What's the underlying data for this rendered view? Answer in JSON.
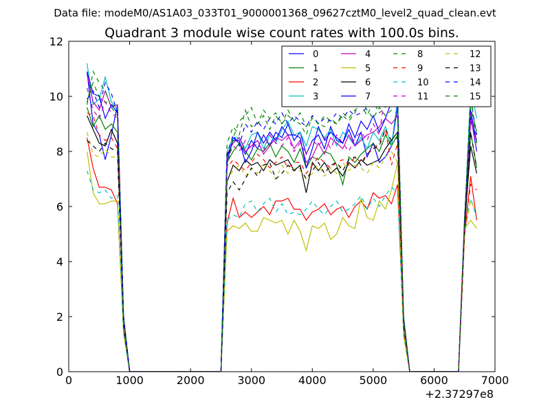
{
  "header": {
    "datafile_label": "Data file: modeM0/AS1A03_033T01_9000001368_09627cztM0_level2_quad_clean.evt"
  },
  "chart_data": {
    "type": "line",
    "title": "Quadrant 3 module wise count rates with 100.0s bins.",
    "xlabel": "",
    "ylabel": "",
    "x_offset_label": "+2.37297e8",
    "xlim": [
      0,
      7000
    ],
    "ylim": [
      0,
      12
    ],
    "x_ticks": [
      0,
      1000,
      2000,
      3000,
      4000,
      5000,
      6000,
      7000
    ],
    "y_ticks": [
      0,
      2,
      4,
      6,
      8,
      10,
      12
    ],
    "grid": false,
    "legend_placement": "top-right",
    "x": [
      300,
      400,
      500,
      600,
      700,
      800,
      900,
      1000,
      1100,
      1200,
      1300,
      1400,
      1500,
      1600,
      1700,
      1800,
      1900,
      2000,
      2100,
      2200,
      2300,
      2400,
      2500,
      2600,
      2700,
      2800,
      2900,
      3000,
      3100,
      3200,
      3300,
      3400,
      3500,
      3600,
      3700,
      3800,
      3900,
      4000,
      4100,
      4200,
      4300,
      4400,
      4500,
      4600,
      4700,
      4800,
      4900,
      5000,
      5100,
      5200,
      5300,
      5400,
      5500,
      5600,
      5700,
      5800,
      5900,
      6000,
      6100,
      6200,
      6300,
      6400,
      6500,
      6600,
      6700
    ],
    "series": [
      {
        "name": "0",
        "color": "#0000ff",
        "dash": "solid",
        "values": [
          10.9,
          9.0,
          8.6,
          7.7,
          8.6,
          9.7,
          2.0,
          0,
          0,
          0,
          0,
          0,
          0,
          0,
          0,
          0,
          0,
          0,
          0,
          0,
          0,
          0,
          0,
          7.6,
          8.5,
          8.3,
          7.9,
          8.4,
          8.1,
          8.6,
          8.2,
          8.7,
          8.5,
          9.0,
          8.4,
          8.7,
          7.9,
          8.4,
          8.6,
          8.1,
          8.9,
          8.4,
          8.3,
          8.8,
          8.2,
          8.7,
          7.8,
          8.3,
          7.6,
          7.8,
          8.2,
          9.6,
          1.8,
          0,
          0,
          0,
          0,
          0,
          0,
          0,
          0,
          0,
          5.2,
          9.3,
          8.0
        ]
      },
      {
        "name": "1",
        "color": "#008000",
        "dash": "solid",
        "values": [
          9.6,
          8.9,
          9.3,
          8.8,
          9.0,
          8.7,
          1.9,
          0,
          0,
          0,
          0,
          0,
          0,
          0,
          0,
          0,
          0,
          0,
          0,
          0,
          0,
          0,
          0,
          7.6,
          8.0,
          8.3,
          8.0,
          7.7,
          8.1,
          8.0,
          8.3,
          7.8,
          8.2,
          8.0,
          7.6,
          8.1,
          7.4,
          7.8,
          7.7,
          8.0,
          7.9,
          7.5,
          6.8,
          7.8,
          7.6,
          7.9,
          8.1,
          8.3,
          8.0,
          8.6,
          8.2,
          8.6,
          1.7,
          0,
          0,
          0,
          0,
          0,
          0,
          0,
          0,
          0,
          5.0,
          8.7,
          7.4
        ]
      },
      {
        "name": "2",
        "color": "#ff0000",
        "dash": "solid",
        "values": [
          8.5,
          7.4,
          6.7,
          6.7,
          6.6,
          6.1,
          1.5,
          0,
          0,
          0,
          0,
          0,
          0,
          0,
          0,
          0,
          0,
          0,
          0,
          0,
          0,
          0,
          0,
          5.4,
          6.3,
          5.6,
          5.8,
          5.6,
          5.8,
          6.0,
          5.7,
          6.2,
          6.2,
          6.3,
          5.9,
          5.9,
          5.5,
          5.8,
          5.9,
          6.1,
          5.7,
          5.9,
          6.0,
          5.6,
          6.0,
          6.2,
          5.9,
          6.5,
          6.3,
          6.4,
          6.1,
          6.8,
          1.4,
          0,
          0,
          0,
          0,
          0,
          0,
          0,
          0,
          0,
          4.9,
          7.1,
          5.5
        ]
      },
      {
        "name": "3",
        "color": "#00bfbf",
        "dash": "solid",
        "values": [
          11.2,
          9.7,
          9.9,
          10.7,
          9.8,
          9.5,
          2.0,
          0,
          0,
          0,
          0,
          0,
          0,
          0,
          0,
          0,
          0,
          0,
          0,
          0,
          0,
          0,
          0,
          8.0,
          8.5,
          8.5,
          8.1,
          8.6,
          8.7,
          8.1,
          8.6,
          8.3,
          8.8,
          9.1,
          8.6,
          8.7,
          8.2,
          8.9,
          8.8,
          8.5,
          8.8,
          8.2,
          8.7,
          8.5,
          8.2,
          8.5,
          8.1,
          8.7,
          8.4,
          8.9,
          8.2,
          9.9,
          1.9,
          0,
          0,
          0,
          0,
          0,
          0,
          0,
          0,
          0,
          5.4,
          10.3,
          9.2
        ]
      },
      {
        "name": "4",
        "color": "#bf00bf",
        "dash": "solid",
        "values": [
          10.8,
          9.8,
          9.5,
          10.2,
          9.6,
          9.7,
          2.0,
          0,
          0,
          0,
          0,
          0,
          0,
          0,
          0,
          0,
          0,
          0,
          0,
          0,
          0,
          0,
          0,
          7.9,
          8.3,
          8.5,
          8.0,
          8.2,
          8.4,
          7.9,
          8.2,
          8.5,
          8.4,
          8.6,
          8.1,
          8.4,
          7.6,
          7.8,
          8.3,
          7.9,
          8.5,
          8.3,
          8.1,
          8.6,
          8.2,
          8.4,
          8.6,
          8.7,
          8.9,
          9.2,
          9.0,
          9.3,
          1.9,
          0,
          0,
          0,
          0,
          0,
          0,
          0,
          0,
          0,
          5.6,
          9.1,
          8.4
        ]
      },
      {
        "name": "5",
        "color": "#bfbf00",
        "dash": "solid",
        "values": [
          8.0,
          6.5,
          6.1,
          6.1,
          6.2,
          6.2,
          1.4,
          0,
          0,
          0,
          0,
          0,
          0,
          0,
          0,
          0,
          0,
          0,
          0,
          0,
          0,
          0,
          0,
          5.1,
          5.3,
          5.2,
          5.4,
          5.1,
          5.1,
          5.6,
          5.5,
          5.4,
          5.5,
          5.0,
          5.5,
          5.1,
          4.4,
          5.3,
          5.2,
          5.4,
          4.8,
          5.0,
          5.6,
          5.3,
          5.2,
          6.3,
          5.6,
          5.5,
          6.2,
          5.9,
          6.6,
          7.6,
          1.3,
          0,
          0,
          0,
          0,
          0,
          0,
          0,
          0,
          0,
          5.2,
          5.5,
          5.2
        ]
      },
      {
        "name": "6",
        "color": "#000000",
        "dash": "solid",
        "values": [
          9.3,
          8.8,
          8.3,
          8.2,
          8.8,
          8.3,
          1.8,
          0,
          0,
          0,
          0,
          0,
          0,
          0,
          0,
          0,
          0,
          0,
          0,
          0,
          0,
          0,
          0,
          6.9,
          7.5,
          7.3,
          7.7,
          7.5,
          7.6,
          7.3,
          7.7,
          7.5,
          7.6,
          7.7,
          7.3,
          7.5,
          6.5,
          7.6,
          7.3,
          7.6,
          7.2,
          7.4,
          7.1,
          7.6,
          7.4,
          7.7,
          7.5,
          7.6,
          7.7,
          8.1,
          8.4,
          8.7,
          1.7,
          0,
          0,
          0,
          0,
          0,
          0,
          0,
          0,
          0,
          5.3,
          8.2,
          7.2
        ]
      },
      {
        "name": "7",
        "color": "#0000ff",
        "dash": "solid",
        "values": [
          10.9,
          10.1,
          10.0,
          9.2,
          9.7,
          9.4,
          2.0,
          0,
          0,
          0,
          0,
          0,
          0,
          0,
          0,
          0,
          0,
          0,
          0,
          0,
          0,
          0,
          0,
          7.8,
          8.4,
          8.4,
          7.6,
          8.0,
          8.7,
          8.3,
          8.7,
          8.4,
          8.9,
          8.6,
          8.6,
          8.5,
          7.4,
          8.1,
          8.9,
          8.4,
          8.7,
          8.5,
          8.3,
          9.0,
          8.5,
          9.1,
          8.8,
          9.3,
          8.7,
          9.2,
          9.8,
          9.6,
          1.9,
          0,
          0,
          0,
          0,
          0,
          0,
          0,
          0,
          0,
          5.4,
          9.5,
          8.3
        ]
      },
      {
        "name": "8",
        "color": "#008000",
        "dash": "dashed",
        "values": [
          9.8,
          10.5,
          10.0,
          9.8,
          9.7,
          9.6,
          2.0,
          0,
          0,
          0,
          0,
          0,
          0,
          0,
          0,
          0,
          0,
          0,
          0,
          0,
          0,
          0,
          0,
          8.3,
          8.9,
          8.6,
          9.5,
          8.9,
          9.0,
          9.3,
          8.8,
          9.3,
          9.0,
          9.5,
          9.1,
          9.0,
          8.6,
          9.3,
          9.0,
          8.9,
          9.2,
          9.0,
          9.3,
          9.1,
          9.4,
          9.9,
          9.5,
          9.2,
          9.6,
          9.3,
          9.5,
          9.8,
          2.0,
          0,
          0,
          0,
          0,
          0,
          0,
          0,
          0,
          0,
          5.5,
          9.6,
          8.7
        ]
      },
      {
        "name": "9",
        "color": "#ff0000",
        "dash": "dashed",
        "values": [
          9.4,
          9.3,
          8.6,
          8.4,
          8.5,
          8.1,
          1.8,
          0,
          0,
          0,
          0,
          0,
          0,
          0,
          0,
          0,
          0,
          0,
          0,
          0,
          0,
          0,
          0,
          7.4,
          7.7,
          7.5,
          7.3,
          7.6,
          7.9,
          7.7,
          7.4,
          7.6,
          7.8,
          7.4,
          7.6,
          7.6,
          7.2,
          7.5,
          7.8,
          7.6,
          7.4,
          7.6,
          7.7,
          7.5,
          7.8,
          7.6,
          7.9,
          8.1,
          8.3,
          8.8,
          7.5,
          8.3,
          1.6,
          0,
          0,
          0,
          0,
          0,
          0,
          0,
          0,
          0,
          5.1,
          6.8,
          6.6
        ]
      },
      {
        "name": "10",
        "color": "#00bfbf",
        "dash": "dashed",
        "values": [
          7.3,
          6.6,
          6.5,
          6.6,
          6.3,
          6.4,
          1.4,
          0,
          0,
          0,
          0,
          0,
          0,
          0,
          0,
          0,
          0,
          0,
          0,
          0,
          0,
          0,
          0,
          5.5,
          5.7,
          5.6,
          6.1,
          6.2,
          5.8,
          6.1,
          6.3,
          5.8,
          6.1,
          5.7,
          5.8,
          5.7,
          5.9,
          6.2,
          5.9,
          5.7,
          6.0,
          6.2,
          5.8,
          5.9,
          6.1,
          6.4,
          5.9,
          6.3,
          6.0,
          6.4,
          6.7,
          6.5,
          1.4,
          0,
          0,
          0,
          0,
          0,
          0,
          0,
          0,
          0,
          5.0,
          6.3,
          5.6
        ]
      },
      {
        "name": "11",
        "color": "#bf00bf",
        "dash": "dashed",
        "values": [
          10.3,
          9.5,
          9.2,
          9.8,
          9.4,
          9.2,
          1.9,
          0,
          0,
          0,
          0,
          0,
          0,
          0,
          0,
          0,
          0,
          0,
          0,
          0,
          0,
          0,
          0,
          7.7,
          8.2,
          8.0,
          8.4,
          8.1,
          8.3,
          8.0,
          8.6,
          8.3,
          8.2,
          8.5,
          8.0,
          8.3,
          7.9,
          8.4,
          8.2,
          8.5,
          8.1,
          8.6,
          8.3,
          8.0,
          8.5,
          8.7,
          8.4,
          9.0,
          8.6,
          10.2,
          10.0,
          10.0,
          2.0,
          0,
          0,
          0,
          0,
          0,
          0,
          0,
          0,
          0,
          5.5,
          9.4,
          8.0
        ]
      },
      {
        "name": "12",
        "color": "#bfbf00",
        "dash": "dashed",
        "values": [
          8.7,
          7.9,
          7.8,
          8.1,
          7.8,
          7.8,
          1.7,
          0,
          0,
          0,
          0,
          0,
          0,
          0,
          0,
          0,
          0,
          0,
          0,
          0,
          0,
          0,
          0,
          7.0,
          7.3,
          7.5,
          7.1,
          7.4,
          7.2,
          7.6,
          7.3,
          7.0,
          7.5,
          7.2,
          7.4,
          7.3,
          7.0,
          7.2,
          7.5,
          7.1,
          7.4,
          7.2,
          7.6,
          7.3,
          7.5,
          7.4,
          7.2,
          7.6,
          7.4,
          7.8,
          8.0,
          7.6,
          1.6,
          0,
          0,
          0,
          0,
          0,
          0,
          0,
          0,
          0,
          5.0,
          6.2,
          5.8
        ]
      },
      {
        "name": "13",
        "color": "#000000",
        "dash": "dashed",
        "values": [
          8.4,
          8.2,
          8.0,
          8.3,
          8.1,
          8.0,
          1.7,
          0,
          0,
          0,
          0,
          0,
          0,
          0,
          0,
          0,
          0,
          0,
          0,
          0,
          0,
          0,
          0,
          6.5,
          6.9,
          6.6,
          7.0,
          7.4,
          7.1,
          7.5,
          7.6,
          7.0,
          7.2,
          7.5,
          7.3,
          7.4,
          7.0,
          7.3,
          7.6,
          7.2,
          7.5,
          7.6,
          7.3,
          7.7,
          7.8,
          7.5,
          7.9,
          8.1,
          8.2,
          8.8,
          8.4,
          8.5,
          1.7,
          0,
          0,
          0,
          0,
          0,
          0,
          0,
          0,
          0,
          5.2,
          8.7,
          7.4
        ]
      },
      {
        "name": "14",
        "color": "#0000ff",
        "dash": "dashed",
        "values": [
          9.9,
          10.2,
          9.6,
          10.5,
          10.1,
          9.4,
          2.0,
          0,
          0,
          0,
          0,
          0,
          0,
          0,
          0,
          0,
          0,
          0,
          0,
          0,
          0,
          0,
          0,
          7.9,
          8.6,
          8.2,
          9.0,
          8.7,
          9.1,
          8.8,
          9.2,
          9.0,
          9.4,
          9.0,
          9.3,
          9.1,
          8.9,
          9.3,
          9.0,
          9.2,
          9.1,
          9.4,
          9.2,
          9.5,
          9.3,
          9.4,
          9.6,
          9.9,
          10.2,
          9.9,
          9.7,
          10.0,
          2.0,
          0,
          0,
          0,
          0,
          0,
          0,
          0,
          0,
          0,
          5.6,
          9.9,
          8.6
        ]
      },
      {
        "name": "15",
        "color": "#008000",
        "dash": "dashed",
        "values": [
          9.7,
          10.9,
          10.5,
          10.2,
          9.6,
          9.3,
          2.0,
          0,
          0,
          0,
          0,
          0,
          0,
          0,
          0,
          0,
          0,
          0,
          0,
          0,
          0,
          0,
          0,
          7.4,
          8.5,
          9.1,
          9.3,
          9.6,
          9.0,
          9.5,
          9.2,
          9.4,
          9.0,
          9.3,
          9.1,
          9.4,
          8.9,
          9.2,
          9.0,
          9.3,
          9.1,
          9.0,
          9.4,
          9.2,
          9.5,
          9.7,
          9.3,
          9.8,
          9.4,
          9.6,
          9.9,
          9.8,
          1.9,
          0,
          0,
          0,
          0,
          0,
          0,
          0,
          0,
          0,
          5.5,
          10.1,
          8.3
        ]
      }
    ]
  }
}
